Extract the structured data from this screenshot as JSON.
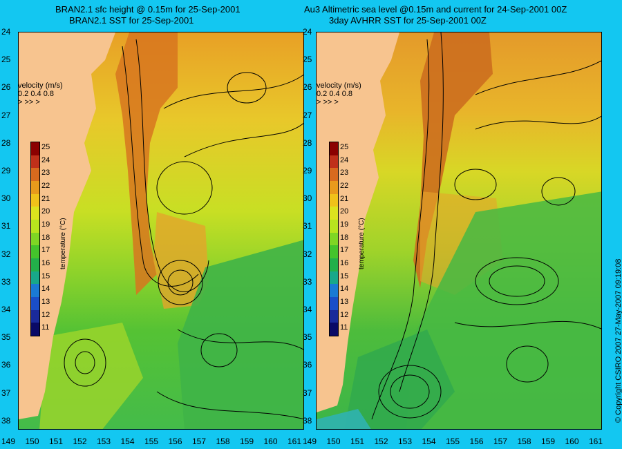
{
  "left_panel": {
    "title_line1": "BRAN2.1 sfc height @ 0.15m for 25-Sep-2001",
    "title_line2": "BRAN2.1 SST for 25-Sep-2001"
  },
  "right_panel": {
    "title_line1": "Au3 Altimetric sea level  @0.15m and current for 24-Sep-2001 00Z",
    "title_line2": "3day AVHRR SST for 25-Sep-2001 00Z"
  },
  "latitude_labels": [
    "24",
    "25",
    "26",
    "27",
    "28",
    "29",
    "30",
    "31",
    "32",
    "33",
    "34",
    "35",
    "36",
    "37",
    "38"
  ],
  "longitude_labels": [
    "149",
    "150",
    "151",
    "152",
    "153",
    "154",
    "155",
    "156",
    "157",
    "158",
    "159",
    "160",
    "161"
  ],
  "velocity_legend": {
    "title": "velocity (m/s)",
    "values": "0.2 0.4 0.8"
  },
  "colorbar": {
    "title": "temperature (°C)",
    "ticks": [
      "25",
      "24",
      "23",
      "22",
      "21",
      "20",
      "19",
      "18",
      "17",
      "16",
      "15",
      "14",
      "13",
      "12",
      "11"
    ],
    "colors": [
      "#8b0000",
      "#c0301a",
      "#d86a1e",
      "#e89a1c",
      "#f0c21a",
      "#dde31e",
      "#b8e41e",
      "#7fd624",
      "#44c42c",
      "#22b04a",
      "#18a88a",
      "#1a7ad4",
      "#1a4ec8",
      "#1a2a9a",
      "#0a0a66"
    ]
  },
  "copyright": "© Copyright CSIRO 2007    27-May-2007 09:19:08",
  "colors": {
    "background": "#13c7f1",
    "land": "#f7c48f"
  }
}
